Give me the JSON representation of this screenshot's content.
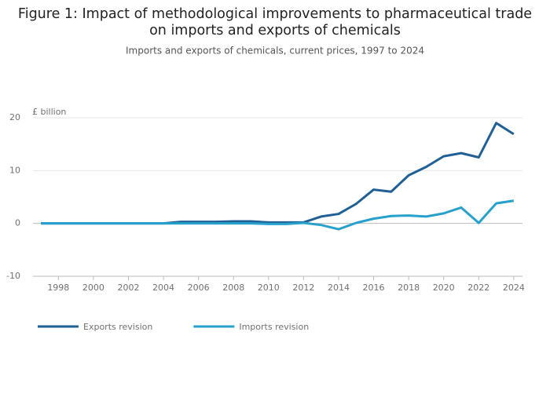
{
  "chart_data": {
    "type": "line",
    "title": [
      "Figure 1: Impact of methodological improvements to pharmaceutical trade",
      "on imports and exports of chemicals"
    ],
    "subtitle": "Imports and exports of chemicals, current prices, 1997 to 2024",
    "y_label": "£ billion",
    "x": [
      1997,
      1998,
      1999,
      2000,
      2001,
      2002,
      2003,
      2004,
      2005,
      2006,
      2007,
      2008,
      2009,
      2010,
      2011,
      2012,
      2013,
      2014,
      2015,
      2016,
      2017,
      2018,
      2019,
      2020,
      2021,
      2022,
      2023,
      2024
    ],
    "series": [
      {
        "name": "Exports revision",
        "color": "#206095",
        "values": [
          0,
          0,
          0,
          0,
          0,
          0,
          0,
          0,
          0.3,
          0.3,
          0.3,
          0.4,
          0.4,
          0.2,
          0.2,
          0.2,
          1.3,
          1.8,
          3.7,
          6.4,
          6.0,
          9.1,
          10.7,
          12.7,
          13.3,
          12.5,
          19.0,
          16.9
        ]
      },
      {
        "name": "Imports revision",
        "color": "#27a0cc",
        "values": [
          0,
          0,
          0,
          0,
          0,
          0,
          0,
          0,
          0,
          0,
          0,
          0,
          0,
          -0.1,
          -0.1,
          0.1,
          -0.3,
          -1.1,
          0.1,
          0.9,
          1.4,
          1.5,
          1.3,
          1.9,
          3.0,
          0.1,
          3.8,
          4.3
        ]
      }
    ],
    "xlim": [
      1996.55,
      2024.5
    ],
    "xticks": [
      1998,
      2000,
      2002,
      2004,
      2006,
      2008,
      2010,
      2012,
      2014,
      2016,
      2018,
      2020,
      2022,
      2024
    ],
    "ylim": [
      -10,
      20
    ],
    "yticks": [
      -10,
      0,
      10,
      20
    ],
    "grid": true
  }
}
